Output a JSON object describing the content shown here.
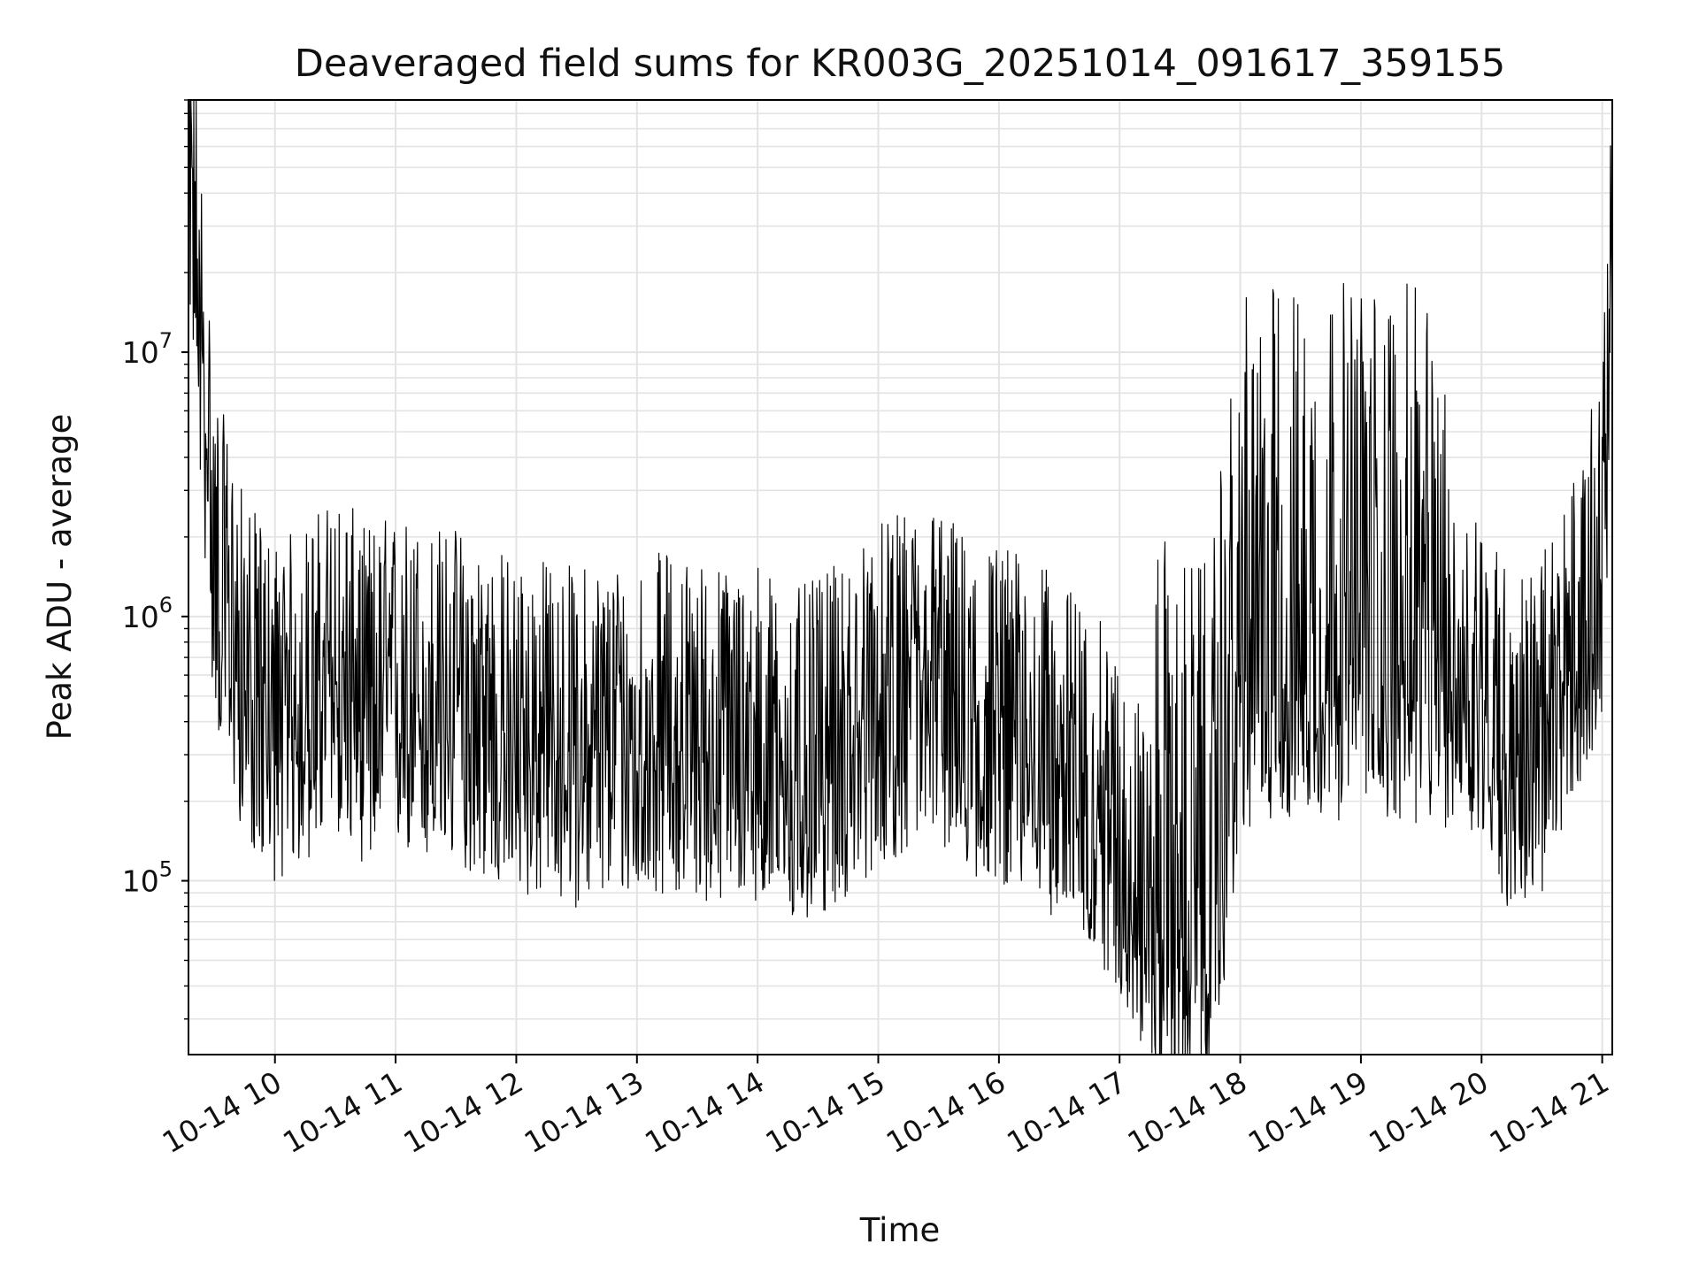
{
  "chart_data": {
    "type": "line",
    "title": "Deaveraged field sums for KR003G_20251014_091617_359155",
    "xlabel": "Time",
    "ylabel": "Peak ADU - average",
    "x_range": [
      "10-14 09:17",
      "10-14 21:05"
    ],
    "ylim": [
      22000,
      90000000
    ],
    "yscale": "log",
    "grid": true,
    "line_color": "#000000",
    "x_ticks": [
      {
        "label": "10-14 10",
        "hour": 10
      },
      {
        "label": "10-14 11",
        "hour": 11
      },
      {
        "label": "10-14 12",
        "hour": 12
      },
      {
        "label": "10-14 13",
        "hour": 13
      },
      {
        "label": "10-14 14",
        "hour": 14
      },
      {
        "label": "10-14 15",
        "hour": 15
      },
      {
        "label": "10-14 16",
        "hour": 16
      },
      {
        "label": "10-14 17",
        "hour": 17
      },
      {
        "label": "10-14 18",
        "hour": 18
      },
      {
        "label": "10-14 19",
        "hour": 19
      },
      {
        "label": "10-14 20",
        "hour": 20
      },
      {
        "label": "10-14 21",
        "hour": 21
      }
    ],
    "y_ticks": [
      {
        "base": "10",
        "exp": "5",
        "value": 100000
      },
      {
        "base": "10",
        "exp": "6",
        "value": 1000000
      },
      {
        "base": "10",
        "exp": "7",
        "value": 10000000
      }
    ],
    "series": [
      {
        "x": [
          "10-14 09:17",
          "10-14 09:30",
          "10-14 09:45",
          "10-14 10:00",
          "10-14 10:15",
          "10-14 10:30",
          "10-14 10:45",
          "10-14 11:00",
          "10-14 11:15",
          "10-14 11:30",
          "10-14 11:45",
          "10-14 12:00",
          "10-14 12:15",
          "10-14 12:30",
          "10-14 12:45",
          "10-14 13:00",
          "10-14 13:15",
          "10-14 13:30",
          "10-14 13:45",
          "10-14 14:00",
          "10-14 14:15",
          "10-14 14:30",
          "10-14 14:45",
          "10-14 15:00",
          "10-14 15:15",
          "10-14 15:30",
          "10-14 15:45",
          "10-14 16:00",
          "10-14 16:15",
          "10-14 16:30",
          "10-14 16:45",
          "10-14 17:00",
          "10-14 17:15",
          "10-14 17:30",
          "10-14 17:45",
          "10-14 18:00",
          "10-14 18:15",
          "10-14 18:30",
          "10-14 18:45",
          "10-14 19:00",
          "10-14 19:15",
          "10-14 19:30",
          "10-14 19:45",
          "10-14 20:00",
          "10-14 20:15",
          "10-14 20:30",
          "10-14 20:45",
          "10-14 21:00",
          "10-14 21:05"
        ],
        "y": [
          60000000,
          1400000,
          500000,
          350000,
          400000,
          550000,
          400000,
          450000,
          400000,
          400000,
          350000,
          300000,
          300000,
          280000,
          300000,
          300000,
          320000,
          300000,
          280000,
          300000,
          220000,
          250000,
          300000,
          400000,
          450000,
          500000,
          350000,
          350000,
          300000,
          250000,
          200000,
          130000,
          70000,
          55000,
          50000,
          500000,
          600000,
          600000,
          600000,
          600000,
          600000,
          550000,
          550000,
          500000,
          250000,
          300000,
          600000,
          1500000,
          18000000
        ]
      }
    ]
  }
}
